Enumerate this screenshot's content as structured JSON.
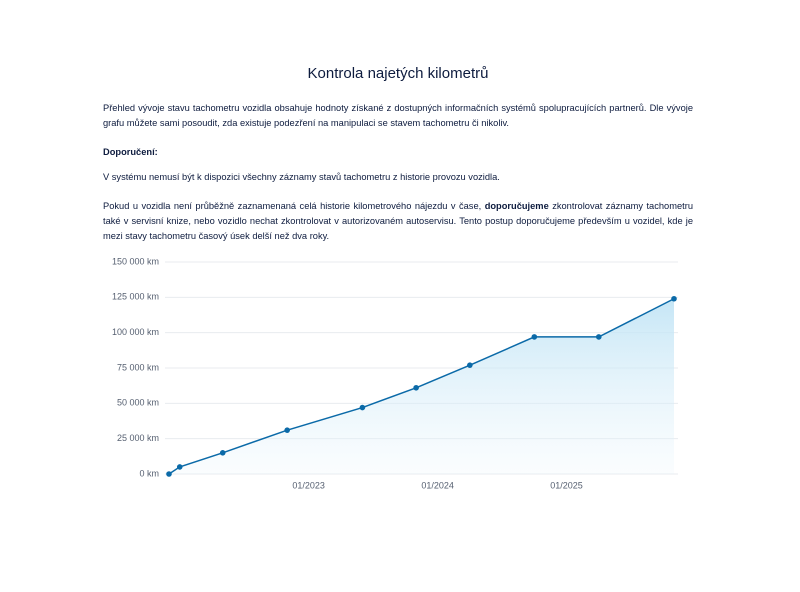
{
  "header": {
    "title": "Kontrola najetých kilometrů"
  },
  "paragraphs": [
    "Přehled vývoje stavu tachometru vozidla obsahuje hodnoty získané z dostupných informačních systémů spolupracujících partnerů. Dle vývoje grafu můžete sami posoudit, zda existuje podezření na manipulaci se stavem tachometru či nikoliv.",
    "Doporučení:",
    "V systému nemusí být k dispozici všechny záznamy stavů tachometru z historie provozu vozidla."
  ],
  "recommendation": {
    "before": "Pokud u vozidla není průběžně zaznamenaná celá historie kilometrového nájezdu v čase, ",
    "bold": "doporučujeme",
    "after": " zkontrolovat záznamy tachometru také v servisní knize, nebo vozidlo nechat zkontrolovat v autorizovaném autoservisu. Tento postup doporučujeme především u vozidel, kde je mezi stavy tachometru časový úsek delší než dva roky."
  },
  "chart_data": {
    "type": "area",
    "x": [
      "12/2021",
      "01/2022",
      "05/2022",
      "11/2022",
      "06/2023",
      "11/2023",
      "04/2024",
      "10/2024",
      "04/2025",
      "11/2025"
    ],
    "values": [
      0,
      5000,
      15000,
      31000,
      47000,
      61000,
      77000,
      97000,
      97000,
      124000
    ],
    "color": "#0b6aa8",
    "xlim": [
      "12/2021",
      "11/2025"
    ],
    "xticks": [
      "01/2023",
      "01/2024",
      "01/2025"
    ],
    "ylim": [
      0,
      150000
    ],
    "yticks": [
      {
        "value": 0,
        "label": "0 km"
      },
      {
        "value": 25000,
        "label": "25 000 km"
      },
      {
        "value": 50000,
        "label": "50 000 km"
      },
      {
        "value": 75000,
        "label": "75 000 km"
      },
      {
        "value": 100000,
        "label": "100 000 km"
      },
      {
        "value": 125000,
        "label": "125 000 km"
      },
      {
        "value": 150000,
        "label": "150 000 km"
      }
    ],
    "grid": true
  }
}
